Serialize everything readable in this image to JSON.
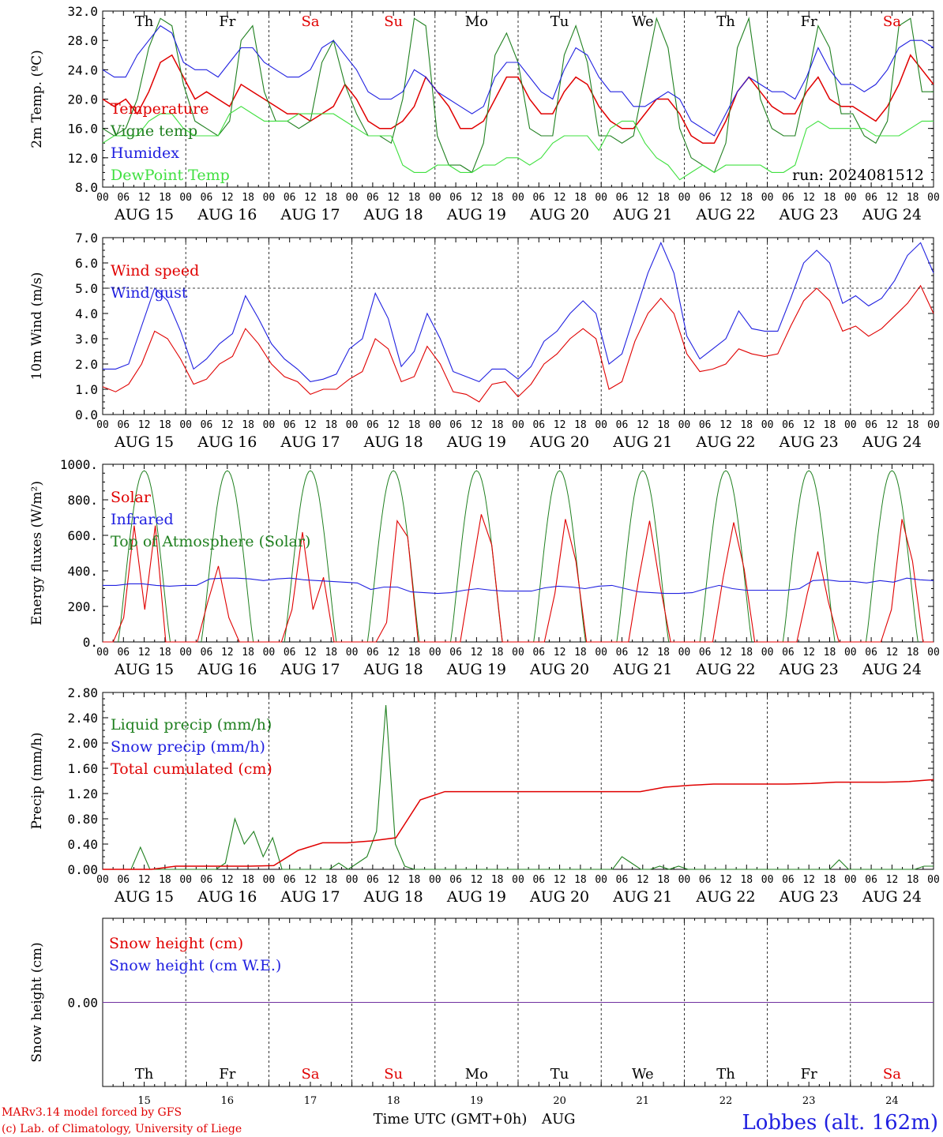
{
  "chart_data": [
    {
      "type": "line",
      "ylabel": "2m Temp. (ºC)",
      "ylim": [
        8,
        32
      ],
      "yticks": [
        "8.0",
        "12.0",
        "16.0",
        "20.0",
        "24.0",
        "28.0",
        "32.0"
      ],
      "run_label": "run: 2024081512",
      "series": [
        {
          "name": "Temperature",
          "color": "#e00000",
          "values": [
            20,
            19,
            20,
            18,
            21,
            25,
            26,
            23,
            20,
            21,
            20,
            19,
            22,
            21,
            20,
            19,
            18,
            18,
            17,
            18,
            19,
            22,
            20,
            17,
            16,
            16,
            17,
            19,
            23,
            21,
            19,
            16,
            16,
            17,
            20,
            23,
            23,
            20,
            18,
            18,
            21,
            23,
            22,
            19,
            17,
            16,
            16,
            18,
            20,
            20,
            18,
            15,
            14,
            14,
            17,
            21,
            23,
            21,
            19,
            18,
            18,
            21,
            23,
            20,
            19,
            19,
            18,
            17,
            19,
            22,
            26,
            24,
            22
          ]
        },
        {
          "name": "Vigne temp",
          "color": "#208020",
          "values": [
            16,
            15,
            16,
            20,
            27,
            31,
            30,
            22,
            17,
            16,
            15,
            17,
            28,
            30,
            21,
            17,
            17,
            16,
            17,
            25,
            28,
            22,
            18,
            15,
            15,
            14,
            20,
            31,
            30,
            15,
            11,
            11,
            10,
            14,
            26,
            29,
            25,
            16,
            15,
            15,
            26,
            30,
            25,
            15,
            15,
            14,
            15,
            23,
            31,
            27,
            16,
            12,
            11,
            10,
            14,
            27,
            31,
            20,
            16,
            15,
            15,
            22,
            30,
            27,
            18,
            18,
            15,
            14,
            17,
            30,
            31,
            21,
            21
          ]
        },
        {
          "name": "Humidex",
          "color": "#2020e0",
          "values": [
            24,
            23,
            23,
            26,
            28,
            30,
            29,
            25,
            24,
            24,
            23,
            25,
            27,
            27,
            25,
            24,
            23,
            23,
            24,
            27,
            28,
            26,
            24,
            21,
            20,
            20,
            21,
            24,
            23,
            21,
            20,
            19,
            18,
            19,
            23,
            25,
            25,
            23,
            21,
            20,
            24,
            27,
            26,
            23,
            21,
            21,
            19,
            19,
            20,
            21,
            20,
            17,
            16,
            15,
            18,
            21,
            23,
            22,
            21,
            21,
            20,
            23,
            27,
            24,
            22,
            22,
            21,
            22,
            24,
            27,
            28,
            28,
            27
          ]
        },
        {
          "name": "DewPoint Temp",
          "color": "#40e040",
          "values": [
            14,
            15,
            15,
            15,
            17,
            18,
            18,
            16,
            15,
            15,
            15,
            18,
            19,
            18,
            17,
            17,
            17,
            18,
            18,
            18,
            18,
            17,
            16,
            15,
            15,
            15,
            11,
            10,
            10,
            11,
            11,
            10,
            10,
            11,
            11,
            12,
            12,
            11,
            12,
            14,
            15,
            15,
            15,
            13,
            16,
            17,
            17,
            14,
            12,
            11,
            9,
            10,
            11,
            10,
            11,
            11,
            11,
            11,
            10,
            10,
            11,
            16,
            17,
            16,
            16,
            16,
            16,
            15,
            15,
            15,
            16,
            17,
            17
          ]
        }
      ]
    },
    {
      "type": "line",
      "ylabel": "10m Wind (m/s)",
      "ylim": [
        0,
        7
      ],
      "yticks": [
        "0.0",
        "1.0",
        "2.0",
        "3.0",
        "4.0",
        "5.0",
        "6.0",
        "7.0"
      ],
      "series": [
        {
          "name": "Wind speed",
          "color": "#e00000",
          "values": [
            1.1,
            0.9,
            1.2,
            2.0,
            3.3,
            3.0,
            2.2,
            1.2,
            1.4,
            2.0,
            2.3,
            3.4,
            2.8,
            2.0,
            1.5,
            1.3,
            0.8,
            1.0,
            1.0,
            1.4,
            1.7,
            3.0,
            2.6,
            1.3,
            1.5,
            2.7,
            2.0,
            0.9,
            0.8,
            0.5,
            1.2,
            1.3,
            0.7,
            1.2,
            2.0,
            2.4,
            3.0,
            3.4,
            3.0,
            1.0,
            1.3,
            2.9,
            4.0,
            4.6,
            4.0,
            2.4,
            1.7,
            1.8,
            2.0,
            2.6,
            2.4,
            2.3,
            2.4,
            3.5,
            4.5,
            5.0,
            4.5,
            3.3,
            3.5,
            3.1,
            3.4,
            3.9,
            4.4,
            5.1,
            4.0
          ]
        },
        {
          "name": "Wind gust",
          "color": "#2020e0",
          "values": [
            1.8,
            1.8,
            2.0,
            3.5,
            5.0,
            4.5,
            3.3,
            1.8,
            2.2,
            2.8,
            3.2,
            4.7,
            3.8,
            2.8,
            2.2,
            1.8,
            1.3,
            1.4,
            1.6,
            2.6,
            3.0,
            4.8,
            3.8,
            1.9,
            2.5,
            4.0,
            3.0,
            1.7,
            1.5,
            1.3,
            1.8,
            1.8,
            1.4,
            1.9,
            2.9,
            3.3,
            4.0,
            4.5,
            4.0,
            2.0,
            2.4,
            4.0,
            5.6,
            6.8,
            5.6,
            3.1,
            2.2,
            2.6,
            3.0,
            4.1,
            3.4,
            3.3,
            3.3,
            4.6,
            6.0,
            6.5,
            6.0,
            4.4,
            4.7,
            4.3,
            4.6,
            5.3,
            6.3,
            6.8,
            5.6
          ]
        }
      ]
    },
    {
      "type": "line",
      "ylabel": "Energy fluxes (W/m²)",
      "ylim": [
        0,
        1100
      ],
      "yticks": [
        "0.",
        "200.",
        "400.",
        "600.",
        "800.",
        "1000."
      ],
      "series": [
        {
          "name": "Solar",
          "color": "#e00000",
          "values": [
            0,
            0,
            150,
            720,
            200,
            720,
            0,
            0,
            0,
            0,
            250,
            470,
            150,
            0,
            0,
            0,
            0,
            0,
            200,
            680,
            200,
            400,
            0,
            0,
            0,
            0,
            0,
            120,
            750,
            650,
            0,
            0,
            0,
            0,
            0,
            400,
            790,
            600,
            0,
            0,
            0,
            0,
            0,
            300,
            760,
            500,
            0,
            0,
            0,
            0,
            0,
            400,
            750,
            350,
            0,
            0,
            0,
            0,
            0,
            400,
            740,
            450,
            0,
            0,
            0,
            0,
            0,
            300,
            560,
            250,
            0,
            0,
            0,
            0,
            0,
            200,
            760,
            500,
            0,
            0
          ]
        },
        {
          "name": "Infrared",
          "color": "#2020e0",
          "values": [
            350,
            350,
            360,
            360,
            350,
            345,
            350,
            350,
            390,
            395,
            395,
            390,
            380,
            390,
            395,
            385,
            380,
            375,
            370,
            365,
            325,
            340,
            340,
            310,
            305,
            300,
            305,
            320,
            330,
            320,
            315,
            315,
            315,
            335,
            345,
            340,
            330,
            345,
            350,
            330,
            310,
            305,
            300,
            300,
            305,
            330,
            350,
            330,
            320,
            320,
            320,
            320,
            330,
            380,
            385,
            375,
            375,
            365,
            380,
            370,
            395,
            385,
            380
          ]
        },
        {
          "name": "Top of Atmosphere (Solar)",
          "color": "#208020",
          "values": []
        }
      ]
    },
    {
      "type": "line",
      "ylabel": "Precip (mm/h)",
      "ylim": [
        0,
        2.8
      ],
      "yticks": [
        "0.00",
        "0.40",
        "0.80",
        "1.20",
        "1.60",
        "2.00",
        "2.40",
        "2.80"
      ],
      "series": [
        {
          "name": "Liquid precip (mm/h)",
          "color": "#208020",
          "values": [
            0,
            0,
            0,
            0,
            0.35,
            0,
            0,
            0,
            0,
            0,
            0,
            0,
            0,
            0.1,
            0.8,
            0.4,
            0.6,
            0.2,
            0.5,
            0,
            0,
            0,
            0,
            0,
            0,
            0.1,
            0,
            0.1,
            0.2,
            0.6,
            2.6,
            0.4,
            0.05,
            0,
            0,
            0,
            0,
            0,
            0,
            0,
            0,
            0,
            0,
            0,
            0,
            0,
            0,
            0,
            0,
            0,
            0,
            0,
            0,
            0,
            0,
            0.2,
            0.1,
            0,
            0,
            0.05,
            0,
            0.05,
            0,
            0,
            0,
            0,
            0,
            0,
            0,
            0,
            0,
            0,
            0,
            0,
            0,
            0,
            0,
            0,
            0.15,
            0,
            0,
            0,
            0,
            0,
            0,
            0,
            0,
            0.05,
            0.05
          ]
        },
        {
          "name": "Snow precip (mm/h)",
          "color": "#2020e0",
          "values": []
        },
        {
          "name": "Total cumulated (cm)",
          "color": "#e00000",
          "values": [
            0,
            0,
            0,
            0.05,
            0.05,
            0.05,
            0.05,
            0.06,
            0.3,
            0.42,
            0.42,
            0.45,
            0.5,
            1.1,
            1.23,
            1.23,
            1.23,
            1.23,
            1.23,
            1.23,
            1.23,
            1.23,
            1.23,
            1.3,
            1.33,
            1.35,
            1.35,
            1.35,
            1.35,
            1.36,
            1.38,
            1.38,
            1.38,
            1.39,
            1.42
          ]
        }
      ]
    },
    {
      "type": "line",
      "ylabel": "Snow height (cm)",
      "ylim": [
        -1,
        1
      ],
      "yticks": [
        "0.00"
      ],
      "series": [
        {
          "name": "Snow height (cm)",
          "color": "#e00000",
          "values": [
            0,
            0
          ]
        },
        {
          "name": "Snow height (cm W.E.)",
          "color": "#2020e0",
          "values": [
            0,
            0
          ]
        }
      ]
    }
  ],
  "x_hour_labels": [
    "00",
    "06",
    "12",
    "18"
  ],
  "x_last_label": "00",
  "dates": [
    "AUG 15",
    "AUG 16",
    "AUG 17",
    "AUG 18",
    "AUG 19",
    "AUG 20",
    "AUG 21",
    "AUG 22",
    "AUG 23",
    "AUG 24"
  ],
  "weekdays": [
    "Th",
    "Fr",
    "Sa",
    "Su",
    "Mo",
    "Tu",
    "We",
    "Th",
    "Fr",
    "Sa"
  ],
  "weekday_colors": [
    "#000000",
    "#000000",
    "#e00000",
    "#e00000",
    "#000000",
    "#000000",
    "#000000",
    "#000000",
    "#000000",
    "#e00000"
  ],
  "bottom_day_numbers": [
    "15",
    "16",
    "17",
    "18",
    "19",
    "20",
    "21",
    "22",
    "23",
    "24"
  ],
  "footer": {
    "credit_line1": "MARv3.14 model forced by GFS",
    "credit_line2": "(c) Lab. of Climatology, University of Liege",
    "xlabel": "Time UTC (GMT+0h)",
    "month": "AUG",
    "station": "Lobbes (alt. 162m)"
  }
}
